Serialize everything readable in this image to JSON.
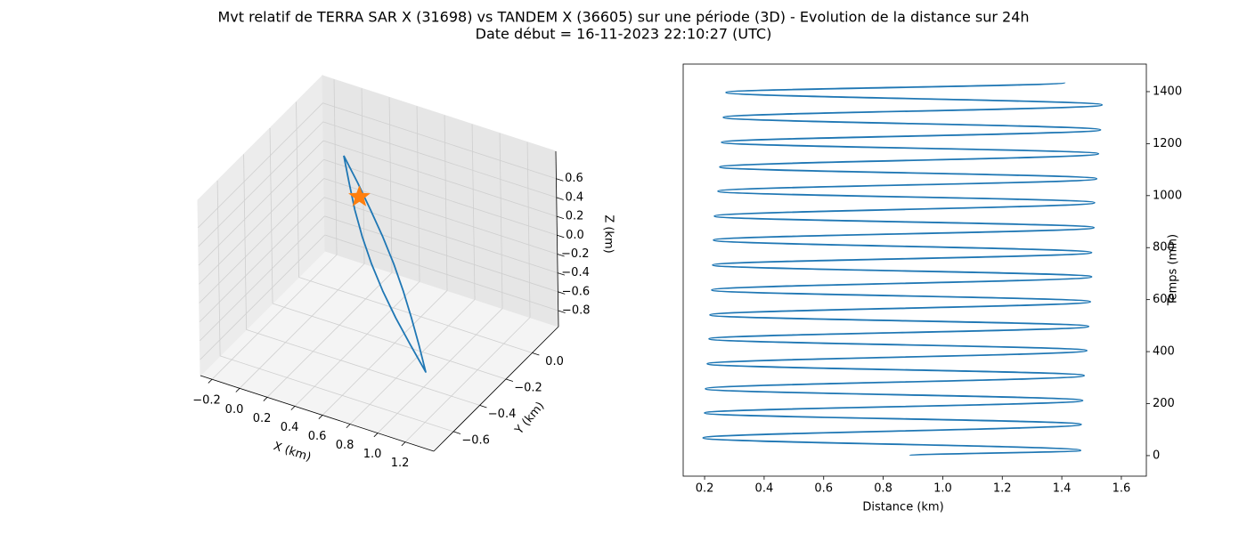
{
  "title": "Mvt relatif de TERRA SAR X (31698) vs TANDEM X (36605) sur une période (3D) - Evolution de la distance sur 24h",
  "subtitle": "Date début = 16-11-2023 22:10:27 (UTC)",
  "chart_data": [
    {
      "type": "line3d",
      "xlabel": "X (km)",
      "ylabel": "Y (km)",
      "zlabel": "Z (km)",
      "xlim": [
        -0.284,
        1.406
      ],
      "ylim": [
        -0.75,
        0.2
      ],
      "zlim": [
        -0.97,
        0.89
      ],
      "xticks": [
        {
          "value": -0.2,
          "label": "−0.2"
        },
        {
          "value": 0,
          "label": "0.0"
        },
        0.2,
        0.4,
        0.6,
        0.8,
        {
          "value": 1,
          "label": "1.0"
        },
        1.2
      ],
      "yticks": [
        {
          "value": -0.6,
          "label": "−0.6"
        },
        {
          "value": -0.4,
          "label": "−0.4"
        },
        {
          "value": -0.2,
          "label": "−0.2"
        },
        {
          "value": 0,
          "label": "0.0"
        }
      ],
      "zticks": [
        {
          "value": -0.8,
          "label": "−0.8"
        },
        {
          "value": -0.6,
          "label": "−0.6"
        },
        {
          "value": -0.4,
          "label": "−0.4"
        },
        {
          "value": -0.2,
          "label": "−0.2"
        },
        {
          "value": 0,
          "label": "0.0"
        },
        0.2,
        0.4,
        0.6
      ],
      "grid": true,
      "series": [
        {
          "color": "#1f77b4",
          "marker": "none",
          "x": [
            0.0,
            0.159,
            0.317,
            0.475,
            0.633,
            0.79,
            0.948,
            1.106,
            1.264,
            1.106,
            0.948,
            0.79,
            0.633,
            0.475,
            0.317,
            0.159,
            0.0
          ],
          "y": [
            0.058,
            -0.069,
            -0.192,
            -0.302,
            -0.399,
            -0.48,
            -0.548,
            -0.604,
            -0.655,
            -0.54,
            -0.43,
            -0.326,
            -0.232,
            -0.148,
            -0.074,
            -0.005,
            0.058
          ],
          "z": [
            0.374,
            0.34,
            0.297,
            0.239,
            0.163,
            0.064,
            -0.054,
            -0.187,
            -0.329,
            -0.277,
            -0.219,
            -0.151,
            -0.07,
            0.024,
            0.132,
            0.25,
            0.374
          ]
        },
        {
          "color": "#ff7f0e",
          "marker": "star",
          "x": [
            0.241
          ],
          "y": [
            -0.078
          ],
          "z": [
            0.24
          ]
        }
      ]
    },
    {
      "type": "line",
      "xlabel": "Distance (km)",
      "ylabel": "Temps (min)",
      "xlim": [
        0.128,
        1.684
      ],
      "ylim": [
        -79,
        1506
      ],
      "xticks": [
        0.2,
        0.4,
        0.6,
        0.8,
        {
          "value": 1,
          "label": "1.0"
        },
        1.2,
        1.4,
        1.6
      ],
      "yticks": [
        0,
        200,
        400,
        600,
        800,
        1000,
        1200,
        1400
      ],
      "yaxis_side": "right",
      "series": [
        {
          "color": "#1f77b4",
          "x": [
            0.89,
            1.463,
            0.195,
            1.465,
            0.2,
            1.47,
            0.203,
            1.475,
            0.209,
            1.484,
            0.215,
            1.49,
            0.218,
            1.496,
            0.224,
            1.5,
            0.227,
            1.5,
            0.23,
            1.508,
            0.233,
            1.51,
            0.245,
            1.517,
            0.251,
            1.523,
            0.257,
            1.53,
            0.263,
            1.535,
            0.272,
            1.41
          ],
          "y": [
            0,
            20,
            68,
            120,
            164,
            212,
            257,
            308,
            353,
            404,
            449,
            497,
            541,
            592,
            637,
            688,
            733,
            781,
            829,
            877,
            921,
            973,
            1017,
            1065,
            1110,
            1161,
            1205,
            1253,
            1301,
            1349,
            1397,
            1435
          ]
        }
      ]
    }
  ]
}
